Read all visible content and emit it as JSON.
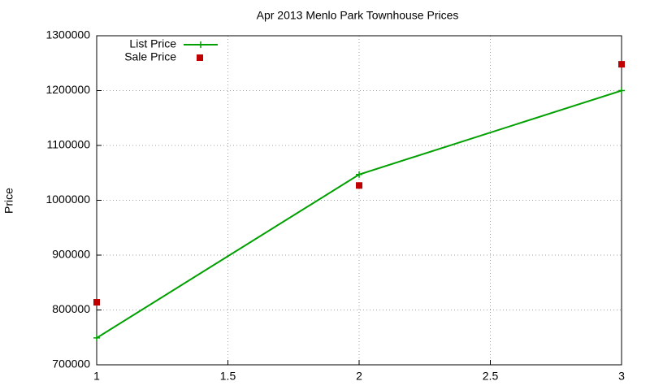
{
  "chart_data": {
    "type": "line",
    "title": "Apr 2013 Menlo Park Townhouse Prices",
    "ylabel": "Price",
    "x": [
      1,
      2,
      3
    ],
    "series": [
      {
        "name": "List Price",
        "color": "#00a000",
        "type": "line",
        "values": [
          749000,
          1047000,
          1200000
        ]
      },
      {
        "name": "Sale Price",
        "color": "#c00000",
        "type": "scatter",
        "values": [
          814000,
          1027000,
          1248000
        ]
      }
    ],
    "xlim": [
      1,
      3
    ],
    "xticks": [
      1,
      1.5,
      2,
      2.5,
      3
    ],
    "ylim": [
      700000,
      1300000
    ],
    "yticks": [
      700000,
      800000,
      900000,
      1000000,
      1100000,
      1200000,
      1300000
    ],
    "grid": true,
    "legend": "top-left"
  }
}
